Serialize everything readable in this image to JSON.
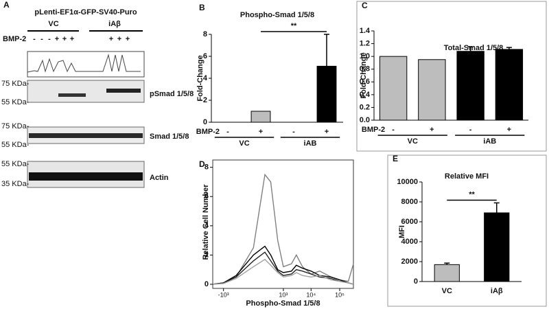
{
  "panel_labels": [
    "A",
    "B",
    "C",
    "D",
    "E"
  ],
  "blot": {
    "title": "pLenti-EF1α-GFP-SV40-Puro",
    "groups": [
      "VC",
      "iAβ"
    ],
    "treatment_label": "BMP-2",
    "vc_lanes": [
      "-",
      "-",
      "-",
      "+",
      "+",
      "+"
    ],
    "iab_lanes": [
      "+",
      "+",
      "+"
    ],
    "markers": [
      "75 KDa-",
      "55 KDa-",
      "75 KDa-",
      "55 KDa-",
      "55 KDa-",
      "35 KDa-"
    ],
    "proteins": [
      "pSmad 1/5/8",
      "Smad 1/5/8",
      "Actin"
    ]
  },
  "chart_data": [
    {
      "type": "bar",
      "title": "Phospho-Smad 1/5/8",
      "ylabel": "Fold-Change",
      "treatment_label": "BMP-2",
      "categories": [
        "-",
        "+",
        "-",
        "+"
      ],
      "groups": [
        "VC",
        "iAB"
      ],
      "values": [
        0,
        1,
        0,
        5.1
      ],
      "errors": [
        null,
        null,
        null,
        2.9
      ],
      "colors": [
        "#bdbdbd",
        "#bdbdbd",
        "#000000",
        "#000000"
      ],
      "ylim": [
        0,
        8
      ],
      "yticks": [
        0,
        2,
        4,
        6,
        8
      ],
      "significance": {
        "text": "**",
        "between": [
          1,
          3
        ]
      }
    },
    {
      "type": "bar",
      "title": "Total-Smad 1/5/8",
      "ylabel": "Fold-Change",
      "treatment_label": "BMP-2",
      "categories": [
        "-",
        "+",
        "-",
        "+"
      ],
      "groups": [
        "VC",
        "iAB"
      ],
      "values": [
        1.0,
        0.95,
        1.08,
        1.11
      ],
      "errors": [
        null,
        null,
        0.07,
        0.03
      ],
      "colors": [
        "#bdbdbd",
        "#bdbdbd",
        "#000000",
        "#000000"
      ],
      "ylim": [
        0,
        1.4
      ],
      "yticks": [
        {
          "value": 0,
          "label": "0.0"
        },
        0.2,
        0.4,
        0.6,
        0.8,
        {
          "value": 1,
          "label": "1.0"
        },
        1.2,
        1.4
      ]
    },
    {
      "type": "line",
      "xlabel": "Phospho-Smad 1/5/8",
      "ylabel": "Relative Cell Number",
      "xscale": "symlog",
      "x": [
        -2500,
        -1000,
        -300,
        0,
        150,
        300,
        600,
        1000,
        2000,
        3000,
        5000,
        10000,
        20000,
        50000,
        100000,
        200000,
        300000
      ],
      "series": [
        {
          "color": "#808080",
          "values": [
            0,
            0.1,
            0.5,
            2.5,
            7.5,
            7.0,
            3,
            1.2,
            1.4,
            2.0,
            1.2,
            0.7,
            0.9,
            0.5,
            0.3,
            0.2,
            1.4
          ]
        },
        {
          "color": "#000000",
          "values": [
            0,
            0.1,
            0.6,
            2,
            2.6,
            2.0,
            1.0,
            0.8,
            0.9,
            1.3,
            1.1,
            0.9,
            0.6,
            0.5,
            0.3,
            0.1,
            0
          ]
        },
        {
          "color": "#222222",
          "values": [
            0,
            0.1,
            0.5,
            1.6,
            2.2,
            1.6,
            0.9,
            0.6,
            0.7,
            1.0,
            0.9,
            0.7,
            0.5,
            0.4,
            0.2,
            0.1,
            0
          ]
        },
        {
          "color": "#a0a0a0",
          "values": [
            0,
            0.05,
            0.4,
            1.2,
            1.7,
            1.3,
            0.8,
            0.5,
            0.6,
            0.8,
            0.6,
            0.5,
            0.6,
            0.3,
            0.2,
            0.1,
            0
          ]
        }
      ],
      "xlim": [
        -2500,
        300000
      ],
      "xticks": [
        {
          "value": -1000,
          "label": "-10³"
        },
        {
          "value": 1000,
          "label": "10³"
        },
        {
          "value": 10000,
          "label": "10⁴"
        },
        {
          "value": 100000,
          "label": "10⁵"
        }
      ],
      "ylim": [
        0,
        8.5
      ],
      "yticks": [
        0,
        2,
        4,
        6,
        8
      ]
    },
    {
      "type": "bar",
      "title": "Relative MFI",
      "ylabel": "MFI",
      "categories": [
        "VC",
        "iAβ"
      ],
      "values": [
        1700,
        6900
      ],
      "errors": [
        150,
        1000
      ],
      "colors": [
        "#bdbdbd",
        "#000000"
      ],
      "ylim": [
        0,
        10000
      ],
      "yticks": [
        0,
        2000,
        4000,
        6000,
        8000,
        10000
      ],
      "significance": {
        "text": "**",
        "between": [
          0,
          1
        ]
      }
    }
  ]
}
